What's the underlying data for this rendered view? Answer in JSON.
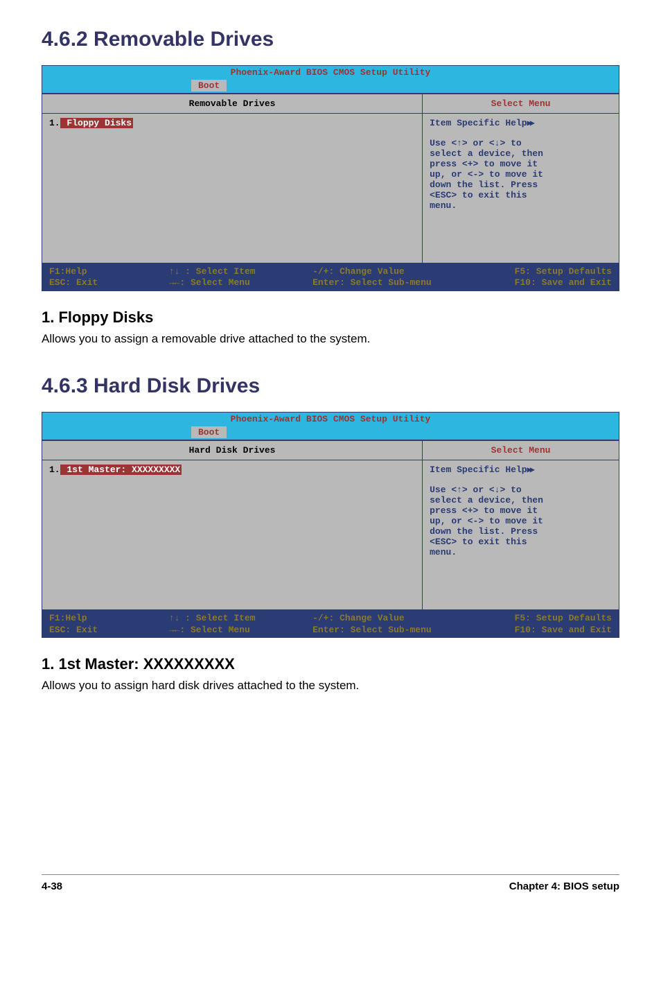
{
  "section1": {
    "heading": "4.6.2  Removable Drives",
    "bios": {
      "title": "Phoenix-Award BIOS CMOS Setup Utility",
      "tab": "Boot",
      "left_header": "Removable Drives",
      "right_header": "Select Menu",
      "item_prefix": "1.",
      "item_selected": " Floppy Disks",
      "help_first": "Item Specific Help",
      "help_lines": [
        "Use <↑> or <↓> to",
        "select a device, then",
        "press <+> to move it",
        "up, or <-> to move it",
        "down the list. Press",
        "<ESC> to exit this",
        "menu."
      ],
      "footer": {
        "c1a": "F1:Help",
        "c1b": "ESC: Exit",
        "c2a": "↑↓ : Select Item",
        "c2b": "→←: Select Menu",
        "c3a": "-/+: Change Value",
        "c3b": "Enter: Select Sub-menu",
        "c4a": "F5: Setup Defaults",
        "c4b": "F10: Save and Exit"
      }
    },
    "sub_heading": "1. Floppy Disks",
    "body": "Allows you to assign a removable drive attached to the system."
  },
  "section2": {
    "heading": "4.6.3  Hard Disk Drives",
    "bios": {
      "title": "Phoenix-Award BIOS CMOS Setup Utility",
      "tab": "Boot",
      "left_header": "Hard Disk Drives",
      "right_header": "Select Menu",
      "item_prefix": "1.",
      "item_selected": " 1st Master: XXXXXXXXX",
      "help_first": "Item Specific Help",
      "help_lines": [
        "Use <↑> or <↓> to",
        "select a device, then",
        "press <+> to move it",
        "up, or <-> to move it",
        "down the list. Press",
        "<ESC> to exit this",
        "menu."
      ],
      "footer": {
        "c1a": "F1:Help",
        "c1b": "ESC: Exit",
        "c2a": "↑↓ : Select Item",
        "c2b": "→←: Select Menu",
        "c3a": "-/+: Change Value",
        "c3b": "Enter: Select Sub-menu",
        "c4a": "F5: Setup Defaults",
        "c4b": "F10: Save and Exit"
      }
    },
    "sub_heading": "1. 1st Master: XXXXXXXXX",
    "body": "Allows you to assign hard disk drives attached to the system."
  },
  "page_footer": {
    "left": "4-38",
    "right": "Chapter 4: BIOS setup"
  }
}
